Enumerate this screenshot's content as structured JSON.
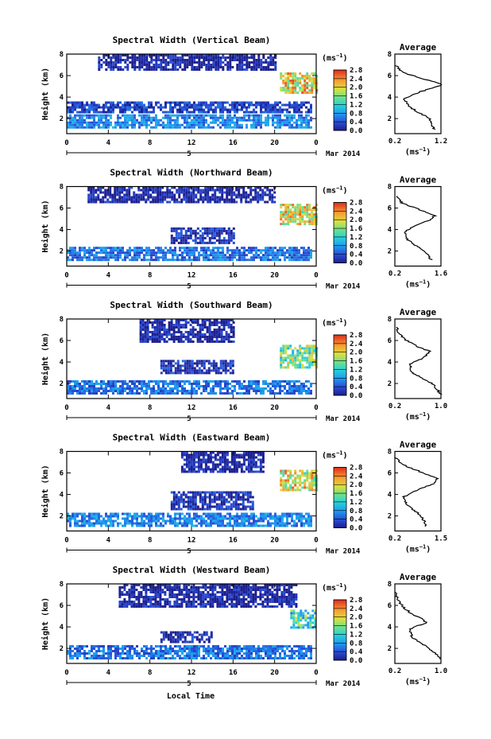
{
  "figure": {
    "xlabel": "Local Time",
    "ylabel": "Height (km)",
    "date_label": "Mar 2014",
    "colorbar_unit": "(ms",
    "colorbar_unit_exp": "−1",
    "colorbar_unit_close": ")",
    "avg_title": "Average",
    "avg_unit": "(ms",
    "avg_unit_exp": "−1",
    "avg_unit_close": ")",
    "day_marker": "5",
    "colorbar_ticks": [
      "0.0",
      "0.4",
      "0.8",
      "1.2",
      "1.6",
      "2.0",
      "2.4",
      "2.8"
    ]
  },
  "chart_data": [
    {
      "type": "heatmap",
      "title": "Spectral Width (Vertical Beam)",
      "x_ticks": [
        "0",
        "4",
        "8",
        "12",
        "16",
        "20",
        "0"
      ],
      "xlim": [
        0,
        24
      ],
      "y_ticks": [
        "2",
        "4",
        "6",
        "8"
      ],
      "ylim": [
        0.6,
        8
      ],
      "colorbar_range": [
        0,
        2.9
      ],
      "layers": [
        {
          "x": [
            0,
            23.5
          ],
          "y": [
            1.1,
            2.4
          ],
          "value": 0.7
        },
        {
          "x": [
            0,
            23.5
          ],
          "y": [
            2.5,
            3.6
          ],
          "value": 0.3
        },
        {
          "x": [
            3,
            20
          ],
          "y": [
            6.5,
            8.0
          ],
          "value": 0.1
        },
        {
          "x": [
            20.5,
            24
          ],
          "y": [
            4.5,
            6.3
          ],
          "value": 2.1
        }
      ],
      "average_profile": {
        "xlim": [
          0.2,
          1.2
        ],
        "x_ticks": [
          "0.2",
          "1.2"
        ],
        "height": [
          1.0,
          2.0,
          3.0,
          3.8,
          4.5,
          5.0,
          5.2,
          5.6,
          6.3,
          7.0
        ],
        "value": [
          1.05,
          0.95,
          0.55,
          0.4,
          0.75,
          1.15,
          1.2,
          0.9,
          0.35,
          0.22
        ]
      }
    },
    {
      "type": "heatmap",
      "title": "Spectral Width (Northward Beam)",
      "x_ticks": [
        "0",
        "4",
        "8",
        "12",
        "16",
        "20",
        "0"
      ],
      "xlim": [
        0,
        24
      ],
      "y_ticks": [
        "2",
        "4",
        "6",
        "8"
      ],
      "ylim": [
        0.6,
        8
      ],
      "colorbar_range": [
        0,
        2.9
      ],
      "layers": [
        {
          "x": [
            0,
            23.5
          ],
          "y": [
            1.1,
            2.4
          ],
          "value": 0.6
        },
        {
          "x": [
            10,
            16
          ],
          "y": [
            2.8,
            4.2
          ],
          "value": 0.2
        },
        {
          "x": [
            2,
            20
          ],
          "y": [
            6.5,
            8.0
          ],
          "value": 0.1
        },
        {
          "x": [
            20.5,
            24
          ],
          "y": [
            4.6,
            6.4
          ],
          "value": 2.0
        }
      ],
      "average_profile": {
        "xlim": [
          0.2,
          1.6
        ],
        "x_ticks": [
          "0.2",
          "1.6"
        ],
        "height": [
          1.2,
          2.0,
          3.0,
          3.8,
          4.5,
          5.0,
          5.3,
          5.8,
          6.5,
          7.2
        ],
        "value": [
          1.3,
          1.1,
          0.6,
          0.5,
          0.9,
          1.35,
          1.4,
          1.0,
          0.4,
          0.25
        ]
      }
    },
    {
      "type": "heatmap",
      "title": "Spectral Width (Southward Beam)",
      "x_ticks": [
        "0",
        "4",
        "8",
        "12",
        "16",
        "20",
        "0"
      ],
      "xlim": [
        0,
        24
      ],
      "y_ticks": [
        "2",
        "4",
        "6",
        "8"
      ],
      "ylim": [
        0.6,
        8
      ],
      "colorbar_range": [
        0,
        2.9
      ],
      "layers": [
        {
          "x": [
            0,
            23.5
          ],
          "y": [
            1.1,
            2.3
          ],
          "value": 0.6
        },
        {
          "x": [
            9,
            16
          ],
          "y": [
            2.9,
            4.2
          ],
          "value": 0.2
        },
        {
          "x": [
            7,
            16
          ],
          "y": [
            6.0,
            8.0
          ],
          "value": 0.1
        },
        {
          "x": [
            20.5,
            24
          ],
          "y": [
            3.4,
            5.6
          ],
          "value": 1.6
        }
      ],
      "average_profile": {
        "xlim": [
          0.2,
          1.0
        ],
        "x_ticks": [
          "0.2",
          "1.0"
        ],
        "height": [
          1.0,
          2.0,
          3.0,
          3.8,
          4.4,
          5.0,
          5.4,
          6.0,
          6.6,
          7.3
        ],
        "value": [
          1.0,
          0.85,
          0.5,
          0.45,
          0.7,
          0.8,
          0.6,
          0.4,
          0.28,
          0.22
        ]
      }
    },
    {
      "type": "heatmap",
      "title": "Spectral Width (Eastward Beam)",
      "x_ticks": [
        "0",
        "4",
        "8",
        "12",
        "16",
        "20",
        "0"
      ],
      "xlim": [
        0,
        24
      ],
      "y_ticks": [
        "2",
        "4",
        "6",
        "8"
      ],
      "ylim": [
        0.6,
        8
      ],
      "colorbar_range": [
        0,
        2.9
      ],
      "layers": [
        {
          "x": [
            0,
            23.5
          ],
          "y": [
            1.1,
            2.3
          ],
          "value": 0.7
        },
        {
          "x": [
            10,
            18
          ],
          "y": [
            2.6,
            4.3
          ],
          "value": 0.2
        },
        {
          "x": [
            11,
            19
          ],
          "y": [
            6.2,
            8.0
          ],
          "value": 0.1
        },
        {
          "x": [
            20.5,
            24
          ],
          "y": [
            4.4,
            6.3
          ],
          "value": 2.0
        }
      ],
      "average_profile": {
        "xlim": [
          0.2,
          1.5
        ],
        "x_ticks": [
          "0.2",
          "1.5"
        ],
        "height": [
          1.0,
          2.0,
          3.0,
          3.8,
          4.5,
          5.0,
          5.5,
          6.0,
          6.8,
          7.5
        ],
        "value": [
          1.1,
          0.95,
          0.55,
          0.45,
          0.9,
          1.3,
          1.4,
          1.0,
          0.4,
          0.2
        ]
      }
    },
    {
      "type": "heatmap",
      "title": "Spectral Width (Westward Beam)",
      "x_ticks": [
        "0",
        "4",
        "8",
        "12",
        "16",
        "20",
        "0"
      ],
      "xlim": [
        0,
        24
      ],
      "y_ticks": [
        "2",
        "4",
        "6",
        "8"
      ],
      "ylim": [
        0.6,
        8
      ],
      "colorbar_range": [
        0,
        2.9
      ],
      "layers": [
        {
          "x": [
            0,
            23.5
          ],
          "y": [
            1.1,
            2.3
          ],
          "value": 0.6
        },
        {
          "x": [
            9,
            14
          ],
          "y": [
            2.6,
            3.6
          ],
          "value": 0.2
        },
        {
          "x": [
            5,
            22
          ],
          "y": [
            5.8,
            8.0
          ],
          "value": 0.1
        },
        {
          "x": [
            21.5,
            24
          ],
          "y": [
            4.0,
            5.6
          ],
          "value": 1.3
        }
      ],
      "average_profile": {
        "xlim": [
          0.2,
          1.0
        ],
        "x_ticks": [
          "0.2",
          "1.0"
        ],
        "height": [
          1.0,
          2.0,
          3.0,
          3.8,
          4.4,
          4.8,
          5.2,
          5.8,
          6.6,
          7.3
        ],
        "value": [
          1.0,
          0.8,
          0.5,
          0.45,
          0.75,
          0.65,
          0.5,
          0.35,
          0.25,
          0.2
        ]
      }
    }
  ]
}
